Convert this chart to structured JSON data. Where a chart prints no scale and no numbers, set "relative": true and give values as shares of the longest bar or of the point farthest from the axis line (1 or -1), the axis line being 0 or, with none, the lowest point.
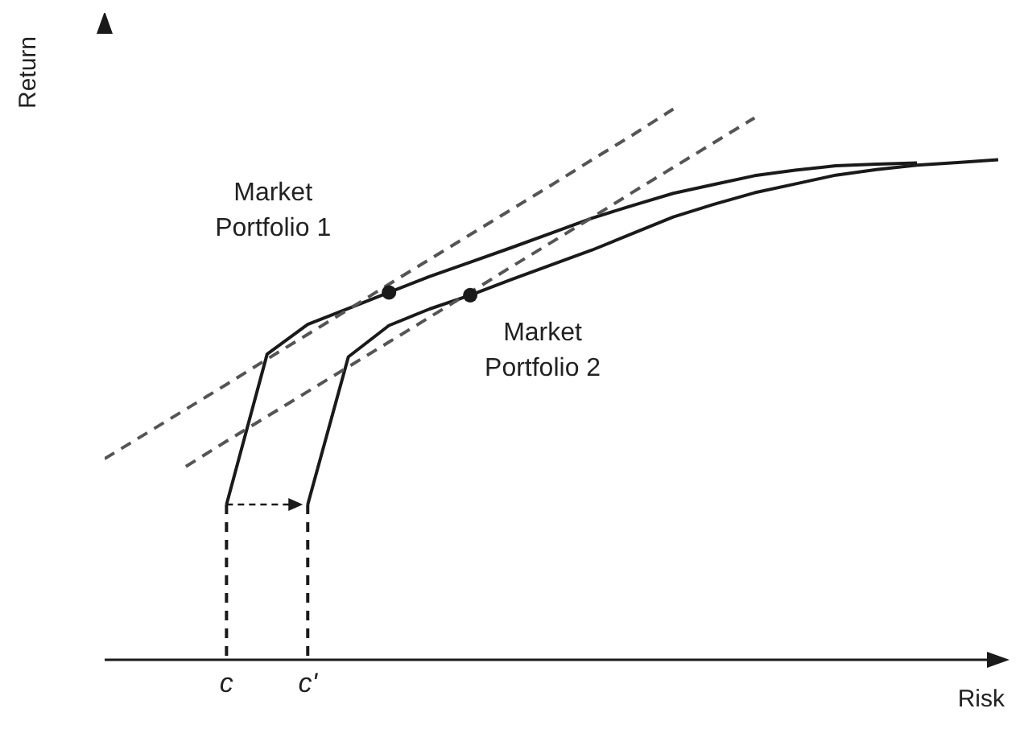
{
  "chart_data": {
    "type": "line",
    "relative": true,
    "xlabel": "Risk",
    "ylabel": "Return",
    "grid": false,
    "marker": "none",
    "categories": [
      null,
      null,
      null,
      "c",
      null,
      "c'",
      null,
      null,
      null,
      null,
      null,
      null,
      null,
      null,
      null,
      null,
      null,
      null,
      null,
      null,
      null,
      null,
      null
    ],
    "series": [
      {
        "color": "#1a1a1a",
        "line_style": "solid",
        "values": [
          null,
          null,
          null,
          0.282,
          0.555,
          0.609,
          0.638,
          0.667,
          0.696,
          0.722,
          0.748,
          0.775,
          0.802,
          0.825,
          0.847,
          0.863,
          0.879,
          0.889,
          0.897,
          0.9,
          0.902,
          null,
          null
        ]
      },
      {
        "color": "#1a1a1a",
        "line_style": "solid",
        "values": [
          null,
          null,
          null,
          null,
          null,
          0.282,
          0.55,
          0.607,
          0.637,
          0.662,
          0.69,
          0.717,
          0.744,
          0.774,
          0.804,
          0.827,
          0.848,
          0.864,
          0.88,
          0.89,
          0.898,
          0.903,
          0.908
        ]
      },
      {
        "color": "#555555",
        "line_style": "dashed",
        "values": [
          0.365,
          0.41,
          0.455,
          0.5,
          0.546,
          0.591,
          0.636,
          0.682,
          0.727,
          0.772,
          0.817,
          0.862,
          0.908,
          0.953,
          1.0,
          null,
          null,
          null,
          null,
          null,
          null,
          null,
          null
        ]
      },
      {
        "color": "#555555",
        "line_style": "dashed",
        "values": [
          null,
          null,
          0.351,
          0.397,
          0.442,
          0.487,
          0.532,
          0.577,
          0.622,
          0.667,
          0.713,
          0.758,
          0.803,
          0.849,
          0.894,
          0.939,
          0.984,
          null,
          null,
          null,
          null,
          null,
          null
        ]
      },
      {
        "type": "scatter",
        "color": "#1a1a1a",
        "marker": "circle",
        "values": [
          null,
          null,
          null,
          null,
          null,
          null,
          null,
          0.667,
          null,
          null,
          null,
          null,
          null,
          null,
          null,
          null,
          null,
          null,
          null,
          null,
          null,
          null,
          null
        ]
      },
      {
        "type": "scatter",
        "color": "#1a1a1a",
        "marker": "circle",
        "values": [
          null,
          null,
          null,
          null,
          null,
          null,
          null,
          null,
          null,
          0.662,
          null,
          null,
          null,
          null,
          null,
          null,
          null,
          null,
          null,
          null,
          null,
          null,
          null
        ]
      }
    ],
    "annotations": [
      "Market Portfolio 1",
      "Market Portfolio 2"
    ]
  }
}
